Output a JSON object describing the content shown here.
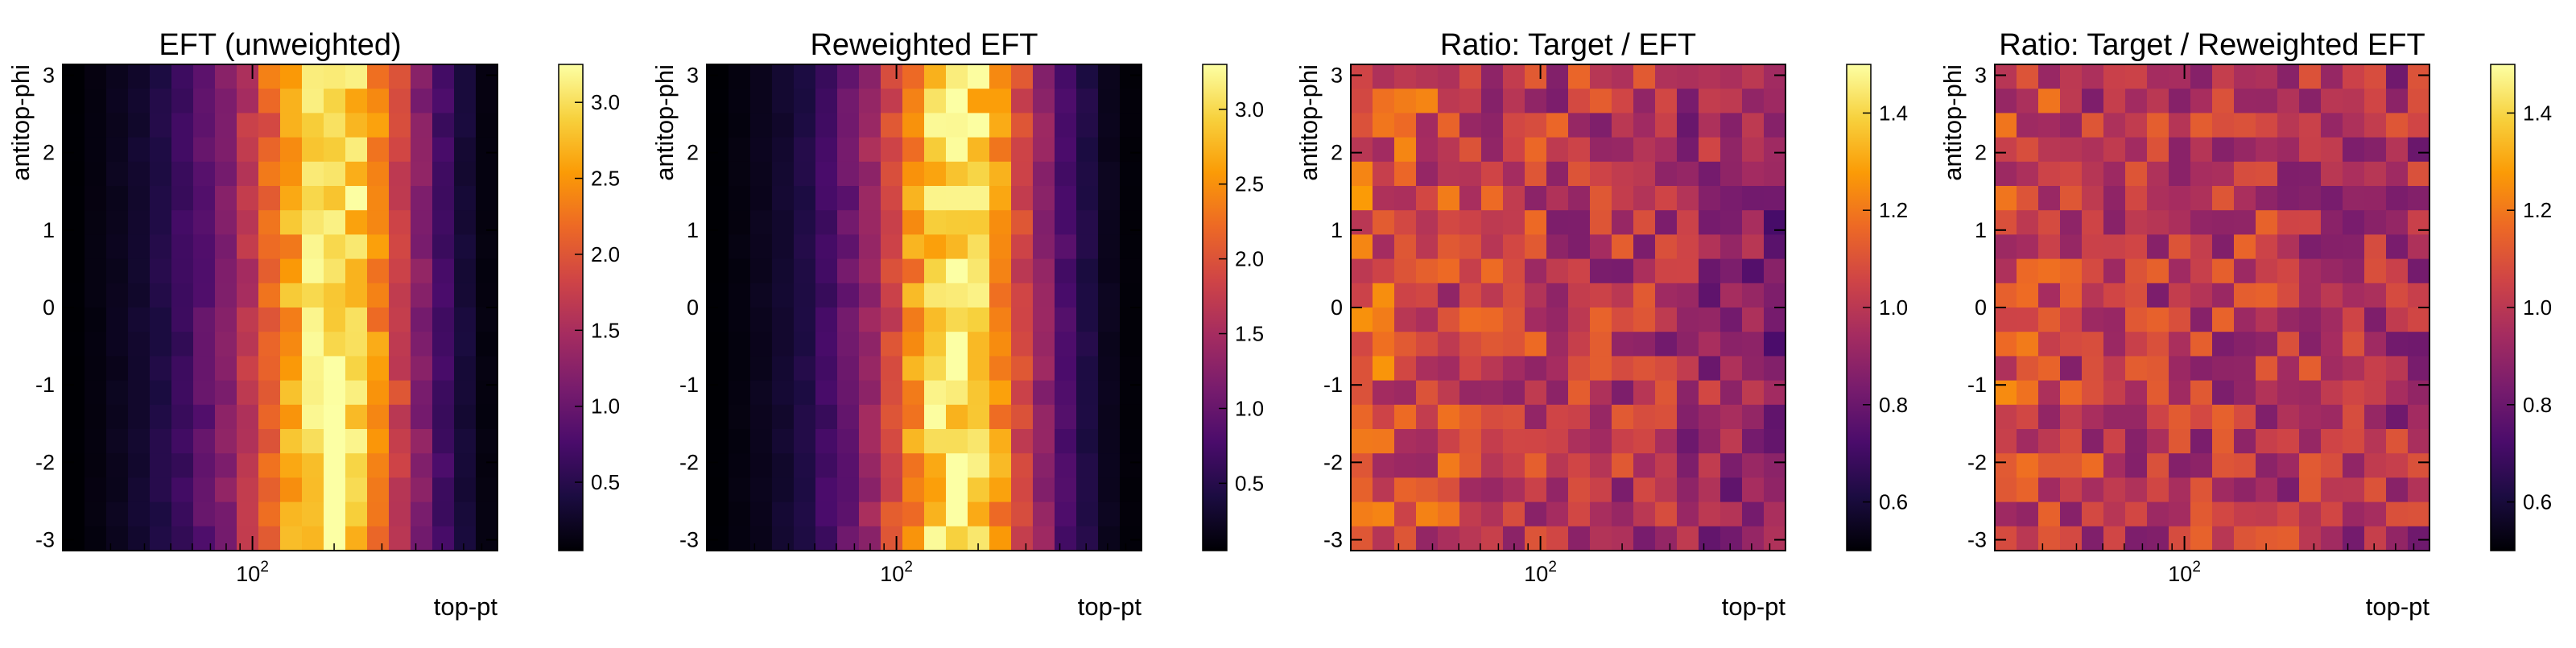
{
  "figure": {
    "background": "#ffffff"
  },
  "colormap": {
    "name": "inferno",
    "stops": [
      "#000004",
      "#1b0c41",
      "#4a0c6b",
      "#781c6d",
      "#a52c60",
      "#cf4446",
      "#ed6925",
      "#fb9b06",
      "#f7d13d",
      "#fcffa4"
    ]
  },
  "chart_data": [
    {
      "type": "heatmap",
      "title": "EFT (unweighted)",
      "xlabel": "top-pt",
      "ylabel": "antitop-phi",
      "x_scale": "log",
      "x_ticks": [
        {
          "value": 100,
          "base": "10",
          "exp": "2"
        }
      ],
      "ylim": [
        -3.14,
        3.14
      ],
      "y_ticks": [
        "3",
        "2",
        "1",
        "0",
        "-1",
        "-2",
        "-3"
      ],
      "n_x_bins": 20,
      "n_y_bins": 20,
      "color_range": [
        0.05,
        3.25
      ],
      "colorbar_ticks": [
        "0.5",
        "1.0",
        "1.5",
        "2.0",
        "2.5",
        "3.0"
      ],
      "x_profile": [
        0.05,
        0.12,
        0.2,
        0.3,
        0.45,
        0.65,
        0.9,
        1.2,
        1.6,
        2.1,
        2.6,
        3.0,
        3.1,
        2.9,
        2.4,
        1.8,
        1.2,
        0.7,
        0.35,
        0.12
      ],
      "noise": 0.06,
      "seed": 3
    },
    {
      "type": "heatmap",
      "title": "Reweighted EFT",
      "xlabel": "top-pt",
      "ylabel": "antitop-phi",
      "x_scale": "log",
      "x_ticks": [
        {
          "value": 100,
          "base": "10",
          "exp": "2"
        }
      ],
      "ylim": [
        -3.14,
        3.14
      ],
      "y_ticks": [
        "3",
        "2",
        "1",
        "0",
        "-1",
        "-2",
        "-3"
      ],
      "n_x_bins": 20,
      "n_y_bins": 20,
      "color_range": [
        0.05,
        3.3
      ],
      "colorbar_ticks": [
        "0.5",
        "1.0",
        "1.5",
        "2.0",
        "2.5",
        "3.0"
      ],
      "x_profile": [
        0.05,
        0.12,
        0.2,
        0.3,
        0.45,
        0.7,
        1.0,
        1.4,
        1.9,
        2.5,
        2.95,
        3.1,
        2.95,
        2.5,
        1.9,
        1.3,
        0.8,
        0.45,
        0.2,
        0.08
      ],
      "noise": 0.06,
      "seed": 7
    },
    {
      "type": "heatmap",
      "title": "Ratio: Target / EFT",
      "xlabel": "top-pt",
      "ylabel": "antitop-phi",
      "x_scale": "log",
      "x_ticks": [
        {
          "value": 100,
          "base": "10",
          "exp": "2"
        }
      ],
      "ylim": [
        -3.14,
        3.14
      ],
      "y_ticks": [
        "3",
        "2",
        "1",
        "0",
        "-1",
        "-2",
        "-3"
      ],
      "n_x_bins": 20,
      "n_y_bins": 20,
      "color_range": [
        0.5,
        1.5
      ],
      "colorbar_ticks": [
        "0.6",
        "0.8",
        "1.0",
        "1.2",
        "1.4"
      ],
      "x_profile": [
        1.15,
        1.1,
        1.08,
        1.06,
        1.05,
        1.04,
        1.03,
        1.02,
        1.01,
        1.0,
        1.0,
        0.99,
        0.98,
        0.97,
        0.96,
        0.94,
        0.92,
        0.9,
        0.88,
        0.85
      ],
      "noise": 0.08,
      "seed": 11
    },
    {
      "type": "heatmap",
      "title": "Ratio: Target / Reweighted EFT",
      "xlabel": "top-pt",
      "ylabel": "antitop-phi",
      "x_scale": "log",
      "x_ticks": [
        {
          "value": 100,
          "base": "10",
          "exp": "2"
        }
      ],
      "ylim": [
        -3.14,
        3.14
      ],
      "y_ticks": [
        "3",
        "2",
        "1",
        "0",
        "-1",
        "-2",
        "-3"
      ],
      "n_x_bins": 20,
      "n_y_bins": 20,
      "color_range": [
        0.5,
        1.5
      ],
      "colorbar_ticks": [
        "0.6",
        "0.8",
        "1.0",
        "1.2",
        "1.4"
      ],
      "x_profile": [
        1.08,
        1.05,
        1.03,
        1.02,
        1.01,
        1.0,
        1.0,
        1.0,
        0.99,
        0.99,
        1.0,
        1.0,
        0.99,
        0.99,
        0.98,
        0.98,
        0.97,
        0.97,
        0.96,
        0.95
      ],
      "noise": 0.08,
      "seed": 19
    }
  ]
}
